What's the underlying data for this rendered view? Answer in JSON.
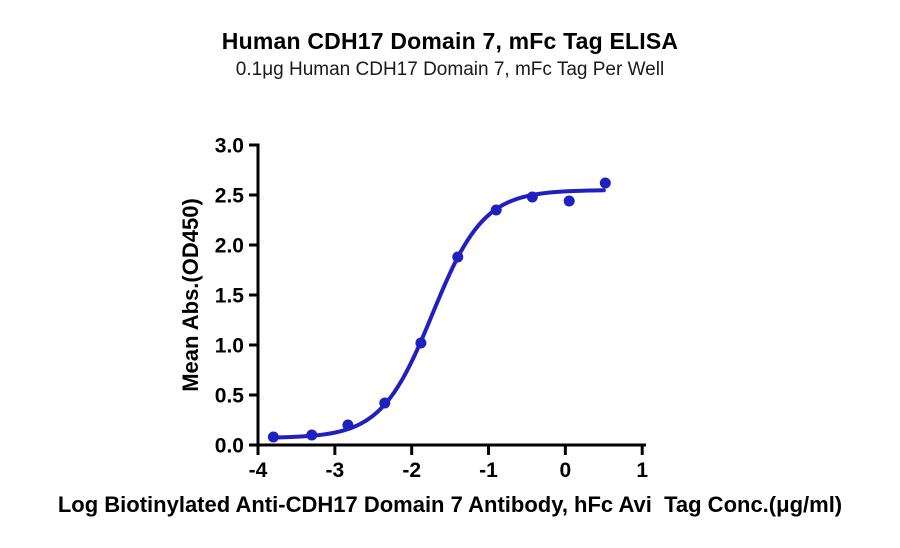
{
  "chart_data": {
    "type": "scatter",
    "title": "Human CDH17 Domain 7, mFc Tag ELISA",
    "subtitle": "0.1μg Human CDH17 Domain 7, mFc Tag Per Well",
    "xlabel": "Log Biotinylated Anti-CDH17 Domain 7 Antibody, hFc Avi  Tag Conc.(μg/ml)",
    "ylabel": "Mean Abs.(OD450)",
    "series": [
      {
        "name": "Biotinylated Anti-CDH17 Domain 7 Antibody, hFc Avi Tag",
        "x": [
          -3.8,
          -3.3,
          -2.83,
          -2.35,
          -1.88,
          -1.4,
          -0.9,
          -0.43,
          0.05,
          0.52
        ],
        "y": [
          0.08,
          0.1,
          0.2,
          0.42,
          1.02,
          1.88,
          2.35,
          2.48,
          2.44,
          2.62
        ]
      }
    ],
    "fit_curve": {
      "model": "4PL",
      "bottom": 0.07,
      "top": 2.55,
      "logEC50": -1.73,
      "hill": 1.3,
      "x_start": -3.8,
      "x_end": 0.5
    },
    "x_ticks": [
      -4,
      -3,
      -2,
      -1,
      0,
      1
    ],
    "x_tick_labels": [
      "-4",
      "-3",
      "-2",
      "-1",
      "0",
      "1"
    ],
    "y_ticks": [
      0,
      0.5,
      1,
      1.5,
      2,
      2.5,
      3
    ],
    "y_tick_labels": [
      "0.0",
      "0.5",
      "1.0",
      "1.5",
      "2.0",
      "2.5",
      "3.0"
    ],
    "xlim": [
      -4,
      1.05
    ],
    "ylim": [
      0,
      3
    ],
    "grid": false,
    "legend": "none",
    "colors": {
      "curve": "#2020c0",
      "marker": "#2020c0",
      "axis": "#000000",
      "text": "#000000",
      "background": "#ffffff"
    }
  }
}
